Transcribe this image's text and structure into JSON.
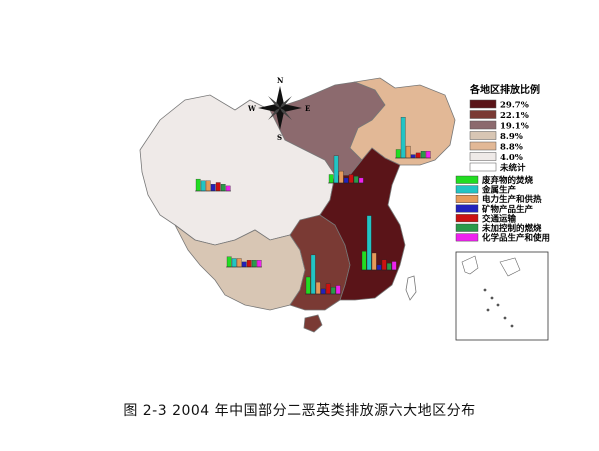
{
  "caption": "图 2-3 2004 年中国部分二恶英类排放源六大地区分布",
  "compass": {
    "n": "N",
    "s": "S",
    "e": "E",
    "w": "W"
  },
  "legend_ratio": {
    "title": "各地区排放比例",
    "items": [
      {
        "label": "29.7%",
        "color": "#5a1418"
      },
      {
        "label": "22.1%",
        "color": "#7a3a34"
      },
      {
        "label": "19.1%",
        "color": "#8c6a6e"
      },
      {
        "label": "8.9%",
        "color": "#d8c6b4"
      },
      {
        "label": "8.8%",
        "color": "#e2b896"
      },
      {
        "label": "4.0%",
        "color": "#efeae8"
      },
      {
        "label": "未统计",
        "color": "#ffffff"
      }
    ]
  },
  "legend_sources": {
    "items": [
      {
        "label": "废弃物的焚烧",
        "color": "#22dd22"
      },
      {
        "label": "金属生产",
        "color": "#22c4c4"
      },
      {
        "label": "电力生产和供热",
        "color": "#e69a5a"
      },
      {
        "label": "矿物产品生产",
        "color": "#2222bb"
      },
      {
        "label": "交通运输",
        "color": "#cc1111"
      },
      {
        "label": "未加控制的燃烧",
        "color": "#2a9a4a"
      },
      {
        "label": "化学品生产和使用",
        "color": "#ee22ee"
      }
    ]
  },
  "regions": [
    {
      "name": "northeast",
      "ratio_index": 4,
      "bars": [
        10,
        48,
        14,
        4,
        6,
        8,
        8
      ]
    },
    {
      "name": "north",
      "ratio_index": 2,
      "bars": [
        10,
        32,
        14,
        6,
        10,
        8,
        6
      ]
    },
    {
      "name": "northwest",
      "ratio_index": 5,
      "bars": [
        14,
        12,
        12,
        8,
        10,
        8,
        6
      ]
    },
    {
      "name": "east",
      "ratio_index": 0,
      "bars": [
        22,
        64,
        20,
        6,
        12,
        8,
        10
      ]
    },
    {
      "name": "southcentral",
      "ratio_index": 1,
      "bars": [
        20,
        46,
        14,
        6,
        12,
        8,
        10
      ]
    },
    {
      "name": "southwest",
      "ratio_index": 3,
      "bars": [
        12,
        10,
        10,
        6,
        8,
        8,
        8
      ]
    }
  ]
}
